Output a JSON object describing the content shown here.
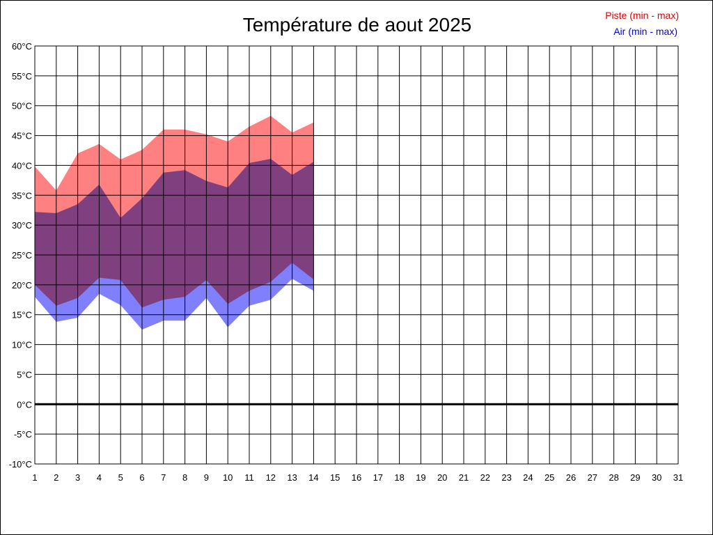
{
  "chart_data": {
    "type": "area",
    "title": "Température de aout 2025",
    "legend": {
      "placement": "top-right",
      "entries": [
        {
          "label": "Piste (min - max)",
          "color": "#e00000"
        },
        {
          "label": "Air (min - max)",
          "color": "#0000e0"
        }
      ]
    },
    "x": {
      "min": 1,
      "max": 31,
      "ticks": [
        "1",
        "2",
        "3",
        "4",
        "5",
        "6",
        "7",
        "8",
        "9",
        "10",
        "11",
        "12",
        "13",
        "14",
        "15",
        "16",
        "17",
        "18",
        "19",
        "20",
        "21",
        "22",
        "23",
        "24",
        "25",
        "26",
        "27",
        "28",
        "29",
        "30",
        "31"
      ]
    },
    "y": {
      "min": -10,
      "max": 60,
      "step": 5,
      "ticks": [
        "-10°C",
        "-5°C",
        "0°C",
        "5°C",
        "10°C",
        "15°C",
        "20°C",
        "25°C",
        "30°C",
        "35°C",
        "40°C",
        "45°C",
        "50°C",
        "55°C",
        "60°C"
      ]
    },
    "grid": true,
    "days": [
      1,
      2,
      3,
      4,
      5,
      6,
      7,
      8,
      9,
      10,
      11,
      12,
      13,
      14
    ],
    "series": [
      {
        "name": "Piste (min - max)",
        "fill": "#ff8080",
        "min": [
          20.0,
          16.5,
          17.8,
          21.2,
          20.8,
          16.2,
          17.5,
          18.0,
          20.8,
          16.8,
          19.0,
          20.5,
          23.7,
          20.9
        ],
        "max": [
          39.8,
          35.8,
          42.0,
          43.6,
          41.0,
          42.6,
          46.0,
          46.0,
          45.2,
          44.0,
          46.5,
          48.3,
          45.5,
          47.2
        ]
      },
      {
        "name": "Air (min - max)",
        "fill": "#8080ff",
        "min": [
          18.0,
          13.8,
          14.5,
          18.5,
          16.6,
          12.5,
          14.0,
          14.0,
          17.8,
          12.9,
          16.5,
          17.5,
          21.0,
          19.0
        ],
        "max": [
          32.2,
          32.0,
          33.5,
          36.8,
          31.2,
          34.5,
          38.8,
          39.2,
          37.4,
          36.3,
          40.4,
          41.1,
          38.4,
          40.6
        ]
      }
    ]
  }
}
